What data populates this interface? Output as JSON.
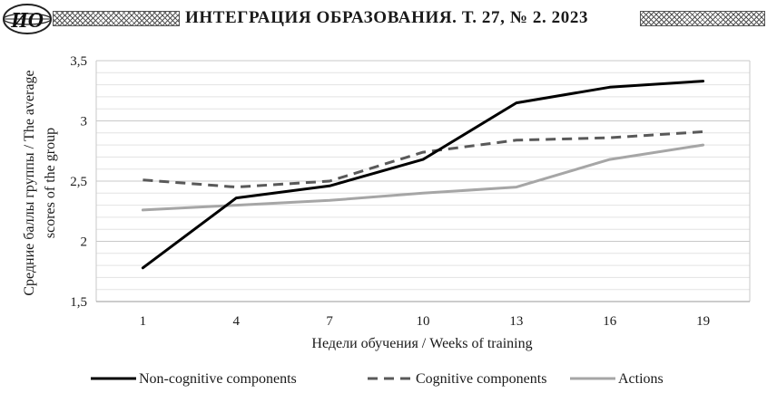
{
  "header": {
    "logo_text": "ИО",
    "journal_title": "ИНТЕГРАЦИЯ ОБРАЗОВАНИЯ. Т. 27, № 2. 2023"
  },
  "chart_data": {
    "type": "line",
    "categories": [
      "1",
      "4",
      "7",
      "10",
      "13",
      "16",
      "19"
    ],
    "series": [
      {
        "name": "Non-cognitive components",
        "values": [
          1.78,
          2.36,
          2.46,
          2.68,
          3.15,
          3.28,
          3.33
        ],
        "color": "#000000",
        "style": "solid"
      },
      {
        "name": "Cognitive components",
        "values": [
          2.51,
          2.45,
          2.5,
          2.74,
          2.84,
          2.86,
          2.91
        ],
        "color": "#595959",
        "style": "dashed"
      },
      {
        "name": "Actions",
        "values": [
          2.26,
          2.3,
          2.34,
          2.4,
          2.45,
          2.68,
          2.8
        ],
        "color": "#a6a6a6",
        "style": "solid"
      }
    ],
    "ylim": [
      1.5,
      3.5
    ],
    "yticks": [
      1.5,
      2,
      2.5,
      3,
      3.5
    ],
    "ytick_labels": [
      "1,5",
      "2",
      "2,5",
      "3",
      "3,5"
    ],
    "xlabel": "Недели обучения / Weeks of training",
    "ylabel_line1": "Средние баллы группы / The average",
    "ylabel_line2": "scores of the group",
    "legend_position": "bottom",
    "grid": true
  }
}
